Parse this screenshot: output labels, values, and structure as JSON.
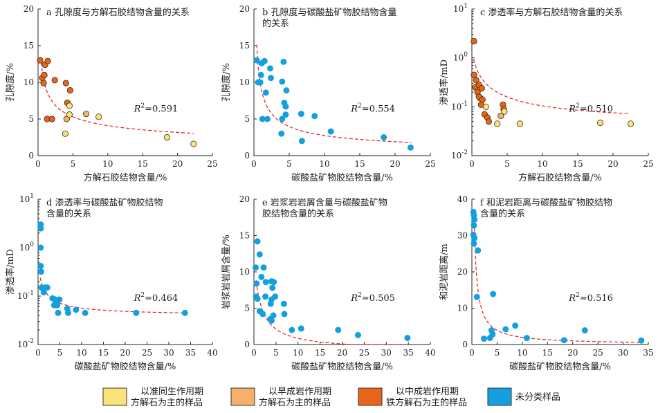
{
  "colors": {
    "penecontemporaneous": "#fbe37a",
    "early_diagenesis": "#f6b06a",
    "mid_diagenesis_ferrocalcite": "#e7651a",
    "unclassified": "#14a0de",
    "fit_line": "#e02020"
  },
  "legend": [
    {
      "key": "penecontemporaneous",
      "lines": [
        "以准同生作用期",
        "方解石为主的样品"
      ]
    },
    {
      "key": "early_diagenesis",
      "lines": [
        "以早成岩作用期",
        "方解石为主的样品"
      ]
    },
    {
      "key": "mid_diagenesis_ferrocalcite",
      "lines": [
        "以中成岩作用期",
        "铁方解石为主的样品"
      ]
    },
    {
      "key": "unclassified",
      "lines": [
        "未分类样品"
      ]
    }
  ],
  "chart_data": [
    {
      "id": "a",
      "type": "scatter",
      "title_lines": [
        "a 孔隙度与方解石胶结物含量的关系"
      ],
      "xlabel": "方解石胶结物含量/%",
      "ylabel": "孔隙度/%",
      "xlim": [
        0,
        25
      ],
      "ylim": [
        0,
        20
      ],
      "ylog": false,
      "xticks": [
        0,
        5,
        10,
        15,
        20,
        25
      ],
      "yticks": [
        0,
        5,
        10,
        15,
        20
      ],
      "r2_label": "0.591",
      "r2_pos": "upper-middle",
      "fit": {
        "form": "power",
        "a": 9.6,
        "b": -0.37,
        "x_from": 0.4,
        "x_to": 22.3
      },
      "points": [
        {
          "x": 0.3,
          "y": 13.0,
          "g": "mid_diagenesis_ferrocalcite"
        },
        {
          "x": 0.6,
          "y": 10.6,
          "g": "mid_diagenesis_ferrocalcite"
        },
        {
          "x": 0.8,
          "y": 9.9,
          "g": "mid_diagenesis_ferrocalcite"
        },
        {
          "x": 0.9,
          "y": 11.0,
          "g": "mid_diagenesis_ferrocalcite"
        },
        {
          "x": 1.0,
          "y": 12.4,
          "g": "mid_diagenesis_ferrocalcite"
        },
        {
          "x": 1.4,
          "y": 12.9,
          "g": "mid_diagenesis_ferrocalcite"
        },
        {
          "x": 1.3,
          "y": 5.0,
          "g": "mid_diagenesis_ferrocalcite"
        },
        {
          "x": 2.0,
          "y": 5.0,
          "g": "mid_diagenesis_ferrocalcite"
        },
        {
          "x": 2.4,
          "y": 10.3,
          "g": "mid_diagenesis_ferrocalcite"
        },
        {
          "x": 4.0,
          "y": 9.9,
          "g": "mid_diagenesis_ferrocalcite"
        },
        {
          "x": 4.2,
          "y": 7.2,
          "g": "mid_diagenesis_ferrocalcite"
        },
        {
          "x": 4.6,
          "y": 8.9,
          "g": "mid_diagenesis_ferrocalcite"
        },
        {
          "x": 4.5,
          "y": 6.8,
          "g": "penecontemporaneous"
        },
        {
          "x": 4.1,
          "y": 5.0,
          "g": "early_diagenesis"
        },
        {
          "x": 4.5,
          "y": 5.6,
          "g": "penecontemporaneous"
        },
        {
          "x": 3.9,
          "y": 3.0,
          "g": "penecontemporaneous"
        },
        {
          "x": 6.9,
          "y": 5.7,
          "g": "early_diagenesis"
        },
        {
          "x": 8.7,
          "y": 5.3,
          "g": "penecontemporaneous"
        },
        {
          "x": 18.5,
          "y": 2.5,
          "g": "penecontemporaneous"
        },
        {
          "x": 22.3,
          "y": 1.6,
          "g": "penecontemporaneous"
        }
      ]
    },
    {
      "id": "b",
      "type": "scatter",
      "title_lines": [
        "b 孔隙度与碳酸盐矿物胶结物含量",
        "的关系"
      ],
      "xlabel": "碳酸盐矿物胶结物含量/%",
      "ylabel": "孔隙度/%",
      "xlim": [
        0,
        25
      ],
      "ylim": [
        0,
        20
      ],
      "ylog": false,
      "xticks": [
        0,
        5,
        10,
        15,
        20,
        25
      ],
      "yticks": [
        0,
        5,
        10,
        15,
        20
      ],
      "r2_label": "0.554",
      "r2_pos": "upper-middle",
      "fit": {
        "form": "power",
        "a": 9.3,
        "b": -0.53,
        "x_from": 0.4,
        "x_to": 22.3
      },
      "points": [
        {
          "x": 0.4,
          "y": 13.0,
          "g": "unclassified"
        },
        {
          "x": 0.6,
          "y": 10.0,
          "g": "unclassified"
        },
        {
          "x": 0.9,
          "y": 10.0,
          "g": "unclassified"
        },
        {
          "x": 1.0,
          "y": 11.0,
          "g": "unclassified"
        },
        {
          "x": 1.1,
          "y": 12.6,
          "g": "unclassified"
        },
        {
          "x": 1.5,
          "y": 12.9,
          "g": "unclassified"
        },
        {
          "x": 1.2,
          "y": 5.0,
          "g": "unclassified"
        },
        {
          "x": 1.9,
          "y": 5.0,
          "g": "unclassified"
        },
        {
          "x": 1.7,
          "y": 8.6,
          "g": "unclassified"
        },
        {
          "x": 2.4,
          "y": 10.6,
          "g": "unclassified"
        },
        {
          "x": 2.3,
          "y": 11.9,
          "g": "unclassified"
        },
        {
          "x": 4.0,
          "y": 10.1,
          "g": "unclassified"
        },
        {
          "x": 4.3,
          "y": 7.2,
          "g": "unclassified"
        },
        {
          "x": 4.2,
          "y": 12.8,
          "g": "unclassified"
        },
        {
          "x": 4.6,
          "y": 8.9,
          "g": "unclassified"
        },
        {
          "x": 4.5,
          "y": 6.7,
          "g": "unclassified"
        },
        {
          "x": 4.0,
          "y": 5.0,
          "g": "unclassified"
        },
        {
          "x": 4.5,
          "y": 5.6,
          "g": "unclassified"
        },
        {
          "x": 3.9,
          "y": 3.0,
          "g": "unclassified"
        },
        {
          "x": 6.7,
          "y": 5.7,
          "g": "unclassified"
        },
        {
          "x": 8.6,
          "y": 5.4,
          "g": "unclassified"
        },
        {
          "x": 6.8,
          "y": 2.0,
          "g": "unclassified"
        },
        {
          "x": 10.9,
          "y": 3.3,
          "g": "unclassified"
        },
        {
          "x": 18.4,
          "y": 2.5,
          "g": "unclassified"
        },
        {
          "x": 22.2,
          "y": 1.1,
          "g": "unclassified"
        }
      ]
    },
    {
      "id": "c",
      "type": "scatter",
      "title_lines": [
        "c 渗透率与方解石胶结物含量的关系"
      ],
      "xlabel": "方解石胶结物含量/%",
      "ylabel": "渗透率/mD",
      "xlim": [
        0,
        25
      ],
      "ylim": [
        0.01,
        10
      ],
      "ylog": true,
      "xticks": [
        0,
        5,
        10,
        15,
        20,
        25
      ],
      "yticks_log": [
        -2,
        -1,
        0,
        1
      ],
      "r2_label": "0.510",
      "r2_pos": "upper-middle",
      "fit": {
        "form": "hyper",
        "c": 0.045,
        "k": 0.62,
        "x0": 0.45,
        "x_from": 0.25,
        "x_to": 22.3
      },
      "points": [
        {
          "x": 0.3,
          "y": 2.2,
          "g": "mid_diagenesis_ferrocalcite"
        },
        {
          "x": 0.3,
          "y": 0.45,
          "g": "mid_diagenesis_ferrocalcite"
        },
        {
          "x": 0.6,
          "y": 0.35,
          "g": "mid_diagenesis_ferrocalcite"
        },
        {
          "x": 0.5,
          "y": 0.25,
          "g": "mid_diagenesis_ferrocalcite"
        },
        {
          "x": 0.8,
          "y": 0.2,
          "g": "mid_diagenesis_ferrocalcite"
        },
        {
          "x": 1.0,
          "y": 0.28,
          "g": "mid_diagenesis_ferrocalcite"
        },
        {
          "x": 1.2,
          "y": 0.15,
          "g": "mid_diagenesis_ferrocalcite"
        },
        {
          "x": 1.4,
          "y": 0.24,
          "g": "mid_diagenesis_ferrocalcite"
        },
        {
          "x": 1.0,
          "y": 0.16,
          "g": "mid_diagenesis_ferrocalcite"
        },
        {
          "x": 1.5,
          "y": 0.14,
          "g": "mid_diagenesis_ferrocalcite"
        },
        {
          "x": 1.3,
          "y": 0.11,
          "g": "mid_diagenesis_ferrocalcite"
        },
        {
          "x": 1.8,
          "y": 0.07,
          "g": "mid_diagenesis_ferrocalcite"
        },
        {
          "x": 2.2,
          "y": 0.06,
          "g": "mid_diagenesis_ferrocalcite"
        },
        {
          "x": 2.4,
          "y": 0.05,
          "g": "mid_diagenesis_ferrocalcite"
        },
        {
          "x": 2.0,
          "y": 0.1,
          "g": "penecontemporaneous"
        },
        {
          "x": 4.4,
          "y": 0.11,
          "g": "mid_diagenesis_ferrocalcite"
        },
        {
          "x": 4.5,
          "y": 0.09,
          "g": "mid_diagenesis_ferrocalcite"
        },
        {
          "x": 4.6,
          "y": 0.08,
          "g": "penecontemporaneous"
        },
        {
          "x": 4.1,
          "y": 0.065,
          "g": "early_diagenesis"
        },
        {
          "x": 3.6,
          "y": 0.045,
          "g": "penecontemporaneous"
        },
        {
          "x": 6.8,
          "y": 0.045,
          "g": "penecontemporaneous"
        },
        {
          "x": 18.2,
          "y": 0.047,
          "g": "penecontemporaneous"
        },
        {
          "x": 22.5,
          "y": 0.045,
          "g": "penecontemporaneous"
        }
      ]
    },
    {
      "id": "d",
      "type": "scatter",
      "title_lines": [
        "d 渗透率与碳酸盐矿物胶结物",
        "含量的关系"
      ],
      "xlabel": "碳酸盐矿物胶结物含量/%",
      "ylabel": "渗透率/mD",
      "xlim": [
        0,
        40
      ],
      "ylim": [
        0.01,
        10
      ],
      "ylog": true,
      "xticks": [
        0,
        5,
        10,
        15,
        20,
        25,
        30,
        35,
        40
      ],
      "yticks_log": [
        -2,
        -1,
        0,
        1
      ],
      "r2_label": "0.464",
      "r2_pos": "upper-middle",
      "fit": {
        "form": "hyper",
        "c": 0.04,
        "k": 0.17,
        "x0": 0.35,
        "x_from": 0.5,
        "x_to": 33.8
      },
      "points": [
        {
          "x": 0.6,
          "y": 3.0,
          "g": "unclassified"
        },
        {
          "x": 0.6,
          "y": 2.5,
          "g": "unclassified"
        },
        {
          "x": 0.6,
          "y": 1.0,
          "g": "unclassified"
        },
        {
          "x": 0.6,
          "y": 0.42,
          "g": "unclassified"
        },
        {
          "x": 0.7,
          "y": 0.32,
          "g": "unclassified"
        },
        {
          "x": 0.8,
          "y": 0.15,
          "g": "unclassified"
        },
        {
          "x": 1.3,
          "y": 0.12,
          "g": "unclassified"
        },
        {
          "x": 1.6,
          "y": 0.15,
          "g": "unclassified"
        },
        {
          "x": 2.1,
          "y": 0.15,
          "g": "unclassified"
        },
        {
          "x": 3.3,
          "y": 0.09,
          "g": "unclassified"
        },
        {
          "x": 3.7,
          "y": 0.065,
          "g": "unclassified"
        },
        {
          "x": 3.9,
          "y": 0.085,
          "g": "unclassified"
        },
        {
          "x": 4.2,
          "y": 0.08,
          "g": "unclassified"
        },
        {
          "x": 4.4,
          "y": 0.065,
          "g": "unclassified"
        },
        {
          "x": 4.6,
          "y": 0.045,
          "g": "unclassified"
        },
        {
          "x": 4.9,
          "y": 0.085,
          "g": "unclassified"
        },
        {
          "x": 6.7,
          "y": 0.055,
          "g": "unclassified"
        },
        {
          "x": 6.9,
          "y": 0.045,
          "g": "unclassified"
        },
        {
          "x": 8.7,
          "y": 0.052,
          "g": "unclassified"
        },
        {
          "x": 10.8,
          "y": 0.045,
          "g": "unclassified"
        },
        {
          "x": 22.5,
          "y": 0.045,
          "g": "unclassified"
        },
        {
          "x": 33.7,
          "y": 0.045,
          "g": "unclassified"
        }
      ]
    },
    {
      "id": "e",
      "type": "scatter",
      "title_lines": [
        "e 岩浆岩岩屑含量与碳酸盐矿物",
        "胶结物含量的关系"
      ],
      "xlabel": "碳酸盐矿物胶结物含量/%",
      "ylabel": "岩浆岩岩屑含量/%",
      "xlim": [
        0,
        40
      ],
      "ylim": [
        0,
        20
      ],
      "ylog": false,
      "xticks": [
        0,
        5,
        10,
        15,
        20,
        25,
        30,
        35,
        40
      ],
      "yticks": [
        0,
        5,
        10,
        15,
        20
      ],
      "r2_label": "0.505",
      "r2_pos": "upper-middle",
      "fit": {
        "form": "hyper",
        "c": -0.8,
        "k": 19.0,
        "x0": 1.5,
        "x_from": 0.5,
        "x_to": 34.8
      },
      "points": [
        {
          "x": 0.8,
          "y": 14.2,
          "g": "unclassified"
        },
        {
          "x": 1.3,
          "y": 12.4,
          "g": "unclassified"
        },
        {
          "x": 0.4,
          "y": 10.6,
          "g": "unclassified"
        },
        {
          "x": 2.2,
          "y": 10.6,
          "g": "unclassified"
        },
        {
          "x": 0.6,
          "y": 8.4,
          "g": "unclassified"
        },
        {
          "x": 1.7,
          "y": 9.3,
          "g": "unclassified"
        },
        {
          "x": 2.7,
          "y": 8.6,
          "g": "unclassified"
        },
        {
          "x": 0.5,
          "y": 6.6,
          "g": "unclassified"
        },
        {
          "x": 0.8,
          "y": 6.3,
          "g": "unclassified"
        },
        {
          "x": 2.6,
          "y": 6.6,
          "g": "unclassified"
        },
        {
          "x": 4.0,
          "y": 8.7,
          "g": "unclassified"
        },
        {
          "x": 4.5,
          "y": 8.6,
          "g": "unclassified"
        },
        {
          "x": 4.2,
          "y": 7.8,
          "g": "unclassified"
        },
        {
          "x": 4.0,
          "y": 6.2,
          "g": "unclassified"
        },
        {
          "x": 4.8,
          "y": 6.6,
          "g": "unclassified"
        },
        {
          "x": 3.8,
          "y": 5.6,
          "g": "unclassified"
        },
        {
          "x": 6.8,
          "y": 5.6,
          "g": "unclassified"
        },
        {
          "x": 1.3,
          "y": 4.6,
          "g": "unclassified"
        },
        {
          "x": 2.0,
          "y": 4.2,
          "g": "unclassified"
        },
        {
          "x": 3.7,
          "y": 3.5,
          "g": "unclassified"
        },
        {
          "x": 4.4,
          "y": 4.0,
          "g": "unclassified"
        },
        {
          "x": 4.0,
          "y": 3.3,
          "g": "unclassified"
        },
        {
          "x": 6.9,
          "y": 4.2,
          "g": "unclassified"
        },
        {
          "x": 8.6,
          "y": 2.0,
          "g": "unclassified"
        },
        {
          "x": 10.7,
          "y": 2.2,
          "g": "unclassified"
        },
        {
          "x": 19.1,
          "y": 2.0,
          "g": "unclassified"
        },
        {
          "x": 23.6,
          "y": 1.3,
          "g": "unclassified"
        },
        {
          "x": 34.8,
          "y": 0.9,
          "g": "unclassified"
        }
      ]
    },
    {
      "id": "f",
      "type": "scatter",
      "title_lines": [
        "f 和泥岩距离与碳酸盐矿物胶结物",
        "含量的关系"
      ],
      "xlabel": "碳酸盐矿物胶结物含量/%",
      "ylabel": "和泥岩距离/m",
      "xlim": [
        0,
        35
      ],
      "ylim": [
        0,
        40
      ],
      "ylog": false,
      "xticks": [
        0,
        5,
        10,
        15,
        20,
        25,
        30,
        35
      ],
      "yticks": [
        0,
        10,
        20,
        30,
        40
      ],
      "r2_label": "0.516",
      "r2_pos": "upper-middle",
      "fit": {
        "form": "hyper",
        "c": 0.0,
        "k": 20.0,
        "x0": 0.12,
        "x_from": 0.45,
        "x_to": 33.5
      },
      "points": [
        {
          "x": 0.3,
          "y": 36.5,
          "g": "unclassified"
        },
        {
          "x": 0.4,
          "y": 35.6,
          "g": "unclassified"
        },
        {
          "x": 0.5,
          "y": 34.4,
          "g": "unclassified"
        },
        {
          "x": 0.4,
          "y": 32.8,
          "g": "unclassified"
        },
        {
          "x": 0.3,
          "y": 30.2,
          "g": "unclassified"
        },
        {
          "x": 0.5,
          "y": 29.3,
          "g": "unclassified"
        },
        {
          "x": 0.4,
          "y": 27.8,
          "g": "unclassified"
        },
        {
          "x": 1.2,
          "y": 25.9,
          "g": "unclassified"
        },
        {
          "x": 1.0,
          "y": 13.1,
          "g": "unclassified"
        },
        {
          "x": 4.2,
          "y": 13.9,
          "g": "unclassified"
        },
        {
          "x": 8.6,
          "y": 5.2,
          "g": "unclassified"
        },
        {
          "x": 6.7,
          "y": 4.2,
          "g": "unclassified"
        },
        {
          "x": 3.9,
          "y": 3.9,
          "g": "unclassified"
        },
        {
          "x": 4.1,
          "y": 2.8,
          "g": "unclassified"
        },
        {
          "x": 3.6,
          "y": 1.8,
          "g": "unclassified"
        },
        {
          "x": 2.4,
          "y": 1.6,
          "g": "unclassified"
        },
        {
          "x": 10.9,
          "y": 1.8,
          "g": "unclassified"
        },
        {
          "x": 18.3,
          "y": 1.2,
          "g": "unclassified"
        },
        {
          "x": 22.4,
          "y": 3.9,
          "g": "unclassified"
        },
        {
          "x": 33.6,
          "y": 1.1,
          "g": "unclassified"
        }
      ]
    }
  ]
}
